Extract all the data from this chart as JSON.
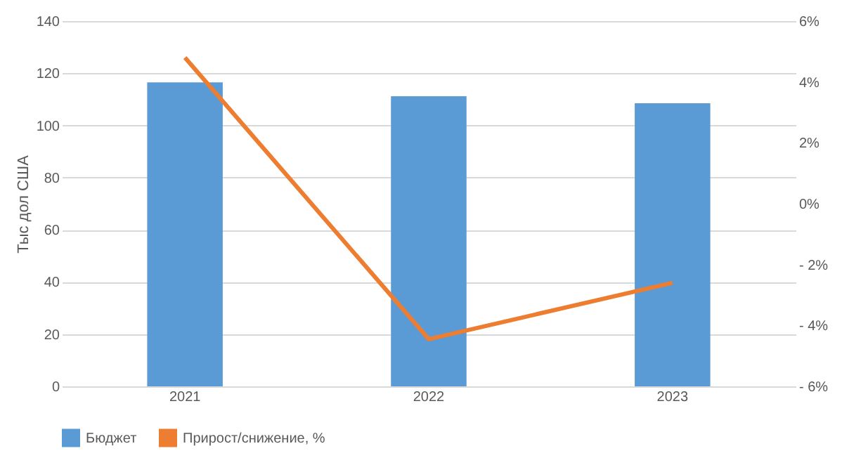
{
  "chart_data": {
    "type": "bar",
    "categories": [
      "2021",
      "2022",
      "2023"
    ],
    "ylabel": "Тыс дол США",
    "series": [
      {
        "name": "Бюджет",
        "color": "#5b9bd5",
        "values": [
          116.5,
          111.2,
          108.5
        ]
      },
      {
        "name": "Прирост/снижение, %",
        "color": "#ed7d31",
        "type": "line",
        "axis": "y2",
        "values": [
          4.8,
          -4.45,
          -2.6
        ]
      }
    ],
    "ylim": [
      0,
      140
    ],
    "yticks": [
      0,
      20,
      40,
      60,
      80,
      100,
      120,
      140
    ],
    "y2lim": [
      -6,
      6
    ],
    "y2ticks": [
      {
        "value": 6,
        "label": "6%"
      },
      {
        "value": 4,
        "label": "4%"
      },
      {
        "value": 2,
        "label": "2%"
      },
      {
        "value": 0,
        "label": "0%"
      },
      {
        "value": -2,
        "label": "- 2%"
      },
      {
        "value": -4,
        "label": "- 4%"
      },
      {
        "value": -6,
        "label": "- 6%"
      }
    ],
    "grid": "y",
    "legend": "bottom",
    "marker": "none",
    "line_style": "solid"
  }
}
